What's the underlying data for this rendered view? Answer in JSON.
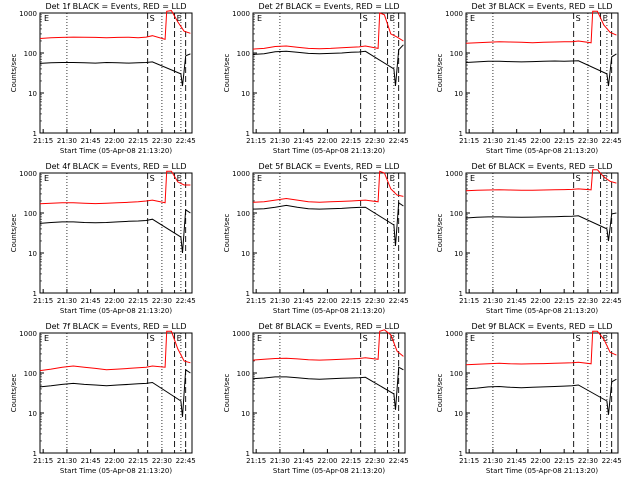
{
  "figure": {
    "x_title": "Start Time (05-Apr-08 21:13:20)",
    "y_title": "Counts/sec"
  },
  "chart_data": [
    {
      "type": "line",
      "title": "Det 1f BLACK = Events, RED = LLD",
      "xlabel": "Start Time (05-Apr-08 21:13:20)",
      "ylabel": "Counts/sec",
      "x_ticks": [
        "21:15",
        "21:30",
        "21:45",
        "22:00",
        "22:15",
        "22:30",
        "22:45"
      ],
      "y_ticks": [
        "1",
        "10",
        "100",
        "1000"
      ],
      "y_scale": "log",
      "ylim": [
        1,
        1000
      ],
      "markers": [
        "S",
        "E"
      ],
      "series": [
        {
          "name": "LLD",
          "color": "#ff0000",
          "times": [
            "21:13",
            "21:20",
            "21:27",
            "21:34",
            "21:41",
            "21:48",
            "21:55",
            "22:02",
            "22:09",
            "22:15",
            "22:20",
            "22:24",
            "22:32",
            "22:33",
            "22:36",
            "22:40",
            "22:44",
            "22:48"
          ],
          "values": [
            230,
            240,
            245,
            250,
            248,
            245,
            240,
            245,
            248,
            240,
            250,
            270,
            220,
            1100,
            1150,
            600,
            350,
            310
          ]
        },
        {
          "name": "Events",
          "color": "#000000",
          "times": [
            "21:13",
            "21:20",
            "21:27",
            "21:34",
            "21:41",
            "21:48",
            "21:55",
            "22:02",
            "22:09",
            "22:15",
            "22:20",
            "22:24",
            "22:42",
            "22:43",
            "22:45",
            "22:48"
          ],
          "values": [
            55,
            57,
            58,
            58,
            57,
            56,
            58,
            57,
            56,
            57,
            58,
            60,
            30,
            15,
            85,
            95
          ]
        }
      ]
    },
    {
      "type": "line",
      "title": "Det 2f BLACK = Events, RED = LLD",
      "xlabel": "Start Time (05-Apr-08 21:13:20)",
      "ylabel": "Counts/sec",
      "x_ticks": [
        "21:15",
        "21:30",
        "21:45",
        "22:00",
        "22:15",
        "22:30",
        "22:45"
      ],
      "y_ticks": [
        "1",
        "10",
        "100",
        "1000"
      ],
      "y_scale": "log",
      "ylim": [
        1,
        1000
      ],
      "markers": [
        "S",
        "E"
      ],
      "series": [
        {
          "name": "LLD",
          "color": "#ff0000",
          "times": [
            "21:13",
            "21:20",
            "21:27",
            "21:34",
            "21:41",
            "21:48",
            "21:55",
            "22:02",
            "22:09",
            "22:15",
            "22:20",
            "22:24",
            "22:32",
            "22:33",
            "22:36",
            "22:40",
            "22:44",
            "22:48"
          ],
          "values": [
            125,
            130,
            145,
            150,
            140,
            130,
            128,
            130,
            135,
            140,
            142,
            150,
            130,
            1000,
            900,
            300,
            250,
            200
          ]
        },
        {
          "name": "Events",
          "color": "#000000",
          "times": [
            "21:13",
            "21:20",
            "21:27",
            "21:34",
            "21:41",
            "21:48",
            "21:55",
            "22:02",
            "22:09",
            "22:15",
            "22:20",
            "22:24",
            "22:42",
            "22:43",
            "22:45",
            "22:48"
          ],
          "values": [
            92,
            96,
            108,
            110,
            105,
            98,
            96,
            98,
            100,
            104,
            106,
            110,
            40,
            15,
            120,
            160
          ]
        }
      ]
    },
    {
      "type": "line",
      "title": "Det 3f BLACK = Events, RED = LLD",
      "xlabel": "Start Time (05-Apr-08 21:13:20)",
      "ylabel": "Counts/sec",
      "x_ticks": [
        "21:15",
        "21:30",
        "21:45",
        "22:00",
        "22:15",
        "22:30",
        "22:45"
      ],
      "y_ticks": [
        "1",
        "10",
        "100",
        "1000"
      ],
      "y_scale": "log",
      "ylim": [
        1,
        1000
      ],
      "markers": [
        "S",
        "E"
      ],
      "series": [
        {
          "name": "LLD",
          "color": "#ff0000",
          "times": [
            "21:13",
            "21:20",
            "21:27",
            "21:34",
            "21:41",
            "21:48",
            "21:55",
            "22:02",
            "22:09",
            "22:15",
            "22:20",
            "22:24",
            "22:32",
            "22:33",
            "22:36",
            "22:40",
            "22:44",
            "22:48"
          ],
          "values": [
            175,
            180,
            185,
            190,
            188,
            185,
            180,
            185,
            188,
            190,
            192,
            200,
            180,
            1100,
            1100,
            500,
            330,
            280
          ]
        },
        {
          "name": "Events",
          "color": "#000000",
          "times": [
            "21:13",
            "21:20",
            "21:27",
            "21:34",
            "21:41",
            "21:48",
            "21:55",
            "22:02",
            "22:09",
            "22:15",
            "22:20",
            "22:24",
            "22:42",
            "22:43",
            "22:45",
            "22:48"
          ],
          "values": [
            58,
            60,
            62,
            62,
            61,
            60,
            61,
            62,
            63,
            62,
            63,
            64,
            30,
            15,
            80,
            95
          ]
        }
      ]
    },
    {
      "type": "line",
      "title": "Det 4f BLACK = Events, RED = LLD",
      "xlabel": "Start Time (05-Apr-08 21:13:20)",
      "ylabel": "Counts/sec",
      "x_ticks": [
        "21:15",
        "21:30",
        "21:45",
        "22:00",
        "22:15",
        "22:30",
        "22:45"
      ],
      "y_ticks": [
        "1",
        "10",
        "100",
        "1000"
      ],
      "y_scale": "log",
      "ylim": [
        1,
        1000
      ],
      "markers": [
        "S",
        "E"
      ],
      "series": [
        {
          "name": "LLD",
          "color": "#ff0000",
          "times": [
            "21:13",
            "21:20",
            "21:27",
            "21:34",
            "21:41",
            "21:48",
            "21:55",
            "22:02",
            "22:09",
            "22:15",
            "22:20",
            "22:24",
            "22:32",
            "22:33",
            "22:36",
            "22:40",
            "22:44",
            "22:48"
          ],
          "values": [
            170,
            175,
            180,
            180,
            175,
            172,
            175,
            180,
            185,
            190,
            200,
            210,
            180,
            1100,
            1100,
            600,
            500,
            500
          ]
        },
        {
          "name": "Events",
          "color": "#000000",
          "times": [
            "21:13",
            "21:20",
            "21:27",
            "21:34",
            "21:41",
            "21:48",
            "21:55",
            "22:02",
            "22:09",
            "22:15",
            "22:20",
            "22:24",
            "22:42",
            "22:43",
            "22:45",
            "22:48"
          ],
          "values": [
            55,
            58,
            60,
            60,
            58,
            57,
            58,
            60,
            62,
            63,
            65,
            70,
            25,
            10,
            120,
            100
          ]
        }
      ]
    },
    {
      "type": "line",
      "title": "Det 5f BLACK = Events, RED = LLD",
      "xlabel": "Start Time (05-Apr-08 21:13:20)",
      "ylabel": "Counts/sec",
      "x_ticks": [
        "21:15",
        "21:30",
        "21:45",
        "22:00",
        "22:15",
        "22:30",
        "22:45"
      ],
      "y_ticks": [
        "1",
        "10",
        "100",
        "1000"
      ],
      "y_scale": "log",
      "ylim": [
        1,
        1000
      ],
      "markers": [
        "S",
        "E"
      ],
      "series": [
        {
          "name": "LLD",
          "color": "#ff0000",
          "times": [
            "21:13",
            "21:20",
            "21:27",
            "21:34",
            "21:41",
            "21:48",
            "21:55",
            "22:02",
            "22:09",
            "22:15",
            "22:20",
            "22:24",
            "22:32",
            "22:33",
            "22:36",
            "22:40",
            "22:44",
            "22:48"
          ],
          "values": [
            185,
            190,
            210,
            230,
            210,
            190,
            185,
            190,
            195,
            200,
            205,
            210,
            190,
            1100,
            1000,
            400,
            280,
            260
          ]
        },
        {
          "name": "Events",
          "color": "#000000",
          "times": [
            "21:13",
            "21:20",
            "21:27",
            "21:34",
            "21:41",
            "21:48",
            "21:55",
            "22:02",
            "22:09",
            "22:15",
            "22:20",
            "22:24",
            "22:42",
            "22:43",
            "22:45",
            "22:48"
          ],
          "values": [
            125,
            128,
            140,
            155,
            140,
            128,
            125,
            128,
            130,
            135,
            138,
            140,
            50,
            15,
            180,
            150
          ]
        }
      ]
    },
    {
      "type": "line",
      "title": "Det 6f BLACK = Events, RED = LLD",
      "xlabel": "Start Time (05-Apr-08 21:13:20)",
      "ylabel": "Counts/sec",
      "x_ticks": [
        "21:15",
        "21:30",
        "21:45",
        "22:00",
        "22:15",
        "22:30",
        "22:45"
      ],
      "y_ticks": [
        "1",
        "10",
        "100",
        "1000"
      ],
      "y_scale": "log",
      "ylim": [
        1,
        1000
      ],
      "markers": [
        "S",
        "E"
      ],
      "series": [
        {
          "name": "LLD",
          "color": "#ff0000",
          "times": [
            "21:13",
            "21:20",
            "21:27",
            "21:34",
            "21:41",
            "21:48",
            "21:55",
            "22:02",
            "22:09",
            "22:15",
            "22:20",
            "22:24",
            "22:32",
            "22:33",
            "22:36",
            "22:40",
            "22:44",
            "22:48"
          ],
          "values": [
            360,
            370,
            375,
            380,
            375,
            370,
            372,
            375,
            380,
            385,
            390,
            400,
            380,
            1200,
            1200,
            800,
            620,
            560
          ]
        },
        {
          "name": "Events",
          "color": "#000000",
          "times": [
            "21:13",
            "21:20",
            "21:27",
            "21:34",
            "21:41",
            "21:48",
            "21:55",
            "22:02",
            "22:09",
            "22:15",
            "22:20",
            "22:24",
            "22:42",
            "22:43",
            "22:45",
            "22:48"
          ],
          "values": [
            75,
            78,
            80,
            80,
            79,
            78,
            79,
            80,
            81,
            82,
            83,
            85,
            40,
            20,
            95,
            100
          ]
        }
      ]
    },
    {
      "type": "line",
      "title": "Det 7f BLACK = Events, RED = LLD",
      "xlabel": "Start Time (05-Apr-08 21:13:20)",
      "ylabel": "Counts/sec",
      "x_ticks": [
        "21:15",
        "21:30",
        "21:45",
        "22:00",
        "22:15",
        "22:30",
        "22:45"
      ],
      "y_ticks": [
        "1",
        "10",
        "100",
        "1000"
      ],
      "y_scale": "log",
      "ylim": [
        1,
        1000
      ],
      "markers": [
        "S",
        "E"
      ],
      "series": [
        {
          "name": "LLD",
          "color": "#ff0000",
          "times": [
            "21:13",
            "21:20",
            "21:27",
            "21:34",
            "21:41",
            "21:48",
            "21:55",
            "22:02",
            "22:09",
            "22:15",
            "22:20",
            "22:24",
            "22:32",
            "22:33",
            "22:36",
            "22:40",
            "22:44",
            "22:48"
          ],
          "values": [
            115,
            125,
            140,
            150,
            140,
            130,
            120,
            125,
            130,
            135,
            140,
            150,
            140,
            1100,
            1100,
            400,
            200,
            180
          ]
        },
        {
          "name": "Events",
          "color": "#000000",
          "times": [
            "21:13",
            "21:20",
            "21:27",
            "21:34",
            "21:41",
            "21:48",
            "21:55",
            "22:02",
            "22:09",
            "22:15",
            "22:20",
            "22:24",
            "22:42",
            "22:43",
            "22:45",
            "22:48"
          ],
          "values": [
            45,
            48,
            52,
            55,
            52,
            50,
            48,
            50,
            52,
            54,
            55,
            58,
            20,
            8,
            120,
            100
          ]
        }
      ]
    },
    {
      "type": "line",
      "title": "Det 8f BLACK = Events, RED = LLD",
      "xlabel": "Start Time (05-Apr-08 21:13:20)",
      "ylabel": "Counts/sec",
      "x_ticks": [
        "21:15",
        "21:30",
        "21:45",
        "22:00",
        "22:15",
        "22:30",
        "22:45"
      ],
      "y_ticks": [
        "1",
        "10",
        "100",
        "1000"
      ],
      "y_scale": "log",
      "ylim": [
        1,
        1000
      ],
      "markers": [
        "S",
        "E"
      ],
      "series": [
        {
          "name": "LLD",
          "color": "#ff0000",
          "times": [
            "21:13",
            "21:20",
            "21:27",
            "21:34",
            "21:41",
            "21:48",
            "21:55",
            "22:02",
            "22:09",
            "22:15",
            "22:20",
            "22:24",
            "22:32",
            "22:33",
            "22:36",
            "22:40",
            "22:44",
            "22:48"
          ],
          "values": [
            210,
            220,
            230,
            235,
            225,
            215,
            210,
            215,
            220,
            225,
            230,
            240,
            220,
            1100,
            1200,
            900,
            350,
            260
          ]
        },
        {
          "name": "Events",
          "color": "#000000",
          "times": [
            "21:13",
            "21:20",
            "21:27",
            "21:34",
            "21:41",
            "21:48",
            "21:55",
            "22:02",
            "22:09",
            "22:15",
            "22:20",
            "22:24",
            "22:42",
            "22:43",
            "22:45",
            "22:48"
          ],
          "values": [
            72,
            75,
            80,
            80,
            76,
            72,
            70,
            72,
            74,
            75,
            76,
            78,
            30,
            12,
            140,
            120
          ]
        }
      ]
    },
    {
      "type": "line",
      "title": "Det 9f BLACK = Events, RED = LLD",
      "xlabel": "Start Time (05-Apr-08 21:13:20)",
      "ylabel": "Counts/sec",
      "x_ticks": [
        "21:15",
        "21:30",
        "21:45",
        "22:00",
        "22:15",
        "22:30",
        "22:45"
      ],
      "y_ticks": [
        "1",
        "10",
        "100",
        "1000"
      ],
      "y_scale": "log",
      "ylim": [
        1,
        1000
      ],
      "markers": [
        "S",
        "E"
      ],
      "series": [
        {
          "name": "LLD",
          "color": "#ff0000",
          "times": [
            "21:13",
            "21:20",
            "21:27",
            "21:34",
            "21:41",
            "21:48",
            "21:55",
            "22:02",
            "22:09",
            "22:15",
            "22:20",
            "22:24",
            "22:32",
            "22:33",
            "22:36",
            "22:40",
            "22:44",
            "22:48"
          ],
          "values": [
            160,
            165,
            170,
            175,
            170,
            168,
            170,
            172,
            175,
            178,
            180,
            185,
            170,
            1100,
            1100,
            700,
            330,
            280
          ]
        },
        {
          "name": "Events",
          "color": "#000000",
          "times": [
            "21:13",
            "21:20",
            "21:27",
            "21:34",
            "21:41",
            "21:48",
            "21:55",
            "22:02",
            "22:09",
            "22:15",
            "22:20",
            "22:24",
            "22:42",
            "22:43",
            "22:45",
            "22:48"
          ],
          "values": [
            40,
            42,
            45,
            46,
            44,
            43,
            44,
            45,
            46,
            47,
            48,
            50,
            20,
            9,
            60,
            70
          ]
        }
      ]
    }
  ]
}
